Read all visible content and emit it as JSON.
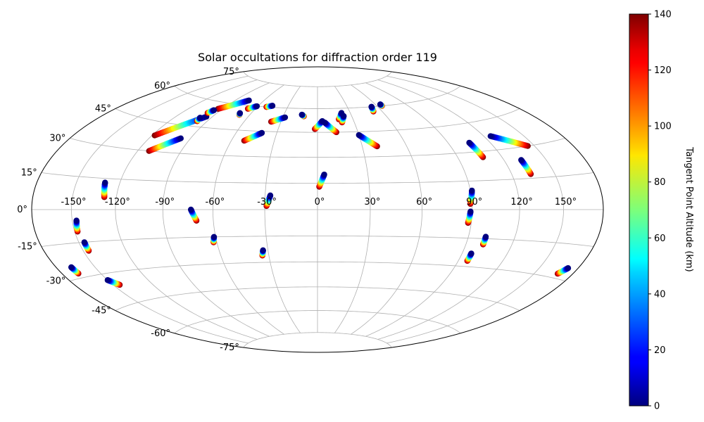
{
  "chart_data": {
    "type": "scatter",
    "projection": "hammer",
    "title": "Solar occultations for diffraction order 119",
    "grid": true,
    "lon_ticks": [
      -150,
      -120,
      -90,
      -60,
      -30,
      0,
      30,
      60,
      90,
      120,
      150
    ],
    "lon_tick_labels": [
      "-150°",
      "-120°",
      "-90°",
      "-60°",
      "-30°",
      "0°",
      "30°",
      "60°",
      "90°",
      "120°",
      "150°"
    ],
    "lat_ticks": [
      -75,
      -60,
      -45,
      -30,
      -15,
      0,
      15,
      30,
      45,
      60,
      75
    ],
    "lat_tick_labels": [
      "-75°",
      "-60°",
      "-45°",
      "-30°",
      "-15°",
      "0°",
      "15°",
      "30°",
      "45°",
      "60°",
      "75°"
    ],
    "colorbar": {
      "label": "Tangent Point Altitude (km)",
      "range": [
        0,
        140
      ],
      "ticks": [
        0,
        20,
        40,
        60,
        80,
        100,
        120,
        140
      ],
      "tick_labels": [
        "0",
        "20",
        "40",
        "60",
        "80",
        "100",
        "120",
        "140"
      ],
      "colormap": "jet"
    },
    "series": [
      {
        "lon_lat_start": [
          -118,
          38
        ],
        "lon_lat_end": [
          -95,
          51
        ]
      },
      {
        "lon_lat_start": [
          -94,
          56
        ],
        "lon_lat_end": [
          -76,
          63
        ]
      },
      {
        "lon_lat_start": [
          -112,
          30
        ],
        "lon_lat_end": [
          -97,
          38
        ]
      },
      {
        "lon_lat_start": [
          -98,
          48
        ],
        "lon_lat_end": [
          -99,
          50
        ]
      },
      {
        "lon_lat_start": [
          -98,
          53
        ],
        "lon_lat_end": [
          -96,
          55
        ]
      },
      {
        "lon_lat_start": [
          -67,
          58
        ],
        "lon_lat_end": [
          -61,
          60
        ]
      },
      {
        "lon_lat_start": [
          -69,
          54
        ],
        "lon_lat_end": [
          -70,
          55
        ]
      },
      {
        "lon_lat_start": [
          -51,
          60
        ],
        "lon_lat_end": [
          -46,
          61
        ]
      },
      {
        "lon_lat_start": [
          -51,
          39
        ],
        "lon_lat_end": [
          -41,
          44
        ]
      },
      {
        "lon_lat_start": [
          -38,
          51
        ],
        "lon_lat_end": [
          -28,
          54
        ]
      },
      {
        "lon_lat_start": [
          -12,
          55
        ],
        "lon_lat_end": [
          -14,
          56
        ]
      },
      {
        "lon_lat_start": [
          -2,
          47
        ],
        "lon_lat_end": [
          4,
          52
        ]
      },
      {
        "lon_lat_start": [
          14,
          45
        ],
        "lon_lat_end": [
          6,
          51
        ]
      },
      {
        "lon_lat_start": [
          18,
          53
        ],
        "lon_lat_end": [
          22,
          57
        ]
      },
      {
        "lon_lat_start": [
          20,
          51
        ],
        "lon_lat_end": [
          23,
          55
        ]
      },
      {
        "lon_lat_start": [
          40,
          36
        ],
        "lon_lat_end": [
          30,
          43
        ]
      },
      {
        "lon_lat_start": [
          52,
          57
        ],
        "lon_lat_end": [
          54,
          60
        ]
      },
      {
        "lon_lat_start": [
          65,
          60
        ],
        "lon_lat_end": [
          65,
          61
        ]
      },
      {
        "lon_lat_start": [
          1,
          13
        ],
        "lon_lat_end": [
          4,
          20
        ]
      },
      {
        "lon_lat_start": [
          -29,
          2
        ],
        "lon_lat_end": [
          -27,
          8
        ]
      },
      {
        "lon_lat_start": [
          -128,
          6
        ],
        "lon_lat_end": [
          -130,
          13
        ]
      },
      {
        "lon_lat_start": [
          -148,
          -10
        ],
        "lon_lat_end": [
          -147,
          -5
        ]
      },
      {
        "lon_lat_start": [
          -146,
          -19
        ],
        "lon_lat_end": [
          -146,
          -15
        ]
      },
      {
        "lon_lat_start": [
          -145,
          -36
        ],
        "lon_lat_end": [
          -150,
          -33
        ]
      },
      {
        "lon_lat_start": [
          -167,
          -28
        ],
        "lon_lat_end": [
          -168,
          -25
        ]
      },
      {
        "lon_lat_start": [
          -70,
          -6
        ],
        "lon_lat_end": [
          -73,
          0
        ]
      },
      {
        "lon_lat_start": [
          -62,
          -18
        ],
        "lon_lat_end": [
          -61,
          -15
        ]
      },
      {
        "lon_lat_start": [
          -34,
          -26
        ],
        "lon_lat_end": [
          -33,
          -23
        ]
      },
      {
        "lon_lat_start": [
          89,
          3
        ],
        "lon_lat_end": [
          91,
          10
        ]
      },
      {
        "lon_lat_start": [
          88,
          -7
        ],
        "lon_lat_end": [
          89,
          -1
        ]
      },
      {
        "lon_lat_start": [
          101,
          -18
        ],
        "lon_lat_end": [
          101,
          -14
        ]
      },
      {
        "lon_lat_start": [
          96,
          -27
        ],
        "lon_lat_end": [
          96,
          -23
        ]
      },
      {
        "lon_lat_start": [
          107,
          27
        ],
        "lon_lat_end": [
          105,
          35
        ]
      },
      {
        "lon_lat_start": [
          133,
          17
        ],
        "lon_lat_end": [
          132,
          24
        ]
      },
      {
        "lon_lat_start": [
          145,
          30
        ],
        "lon_lat_end": [
          125,
          37
        ]
      },
      {
        "lon_lat_start": [
          168,
          -28
        ],
        "lon_lat_end": [
          172,
          -25
        ]
      }
    ]
  }
}
